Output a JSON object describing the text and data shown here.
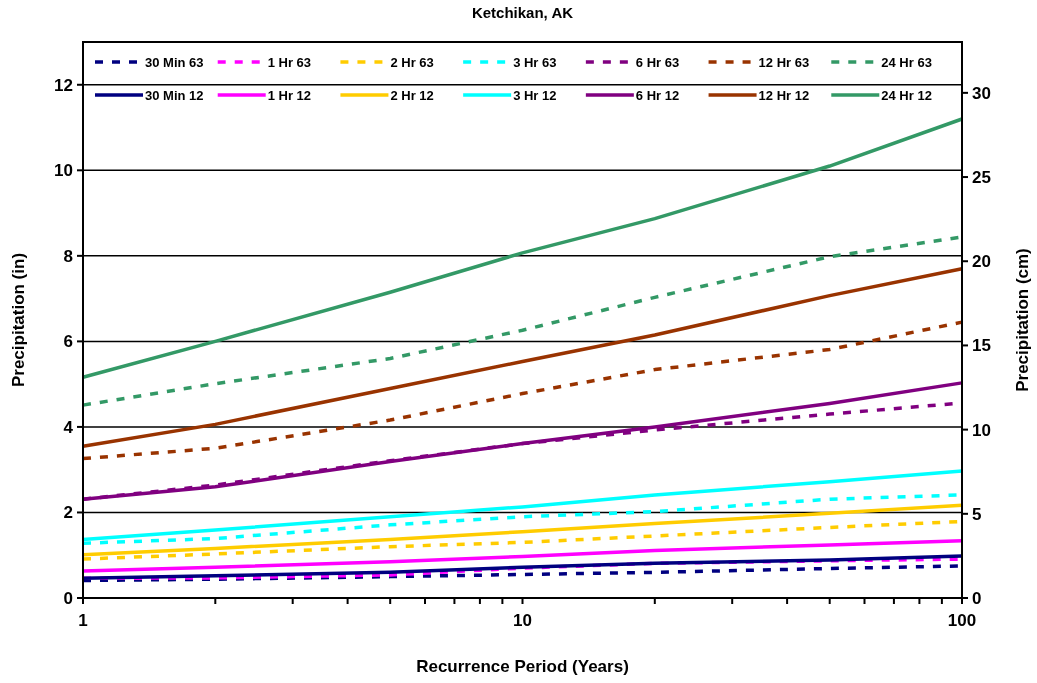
{
  "chart_data": {
    "type": "line",
    "title": "Ketchikan, AK",
    "xlabel": "Recurrence Period (Years)",
    "ylabel": "Precipitation (in)",
    "y2label": "Precipitation (cm)",
    "log": "x",
    "grid": "y",
    "legend": "top",
    "marker": "none",
    "xlim": [
      1,
      100
    ],
    "xticks": [
      1,
      {
        "value": 2,
        "label": null
      },
      {
        "value": 3,
        "label": null
      },
      {
        "value": 4,
        "label": null
      },
      {
        "value": 5,
        "label": null
      },
      {
        "value": 6,
        "label": null
      },
      {
        "value": 7,
        "label": null
      },
      {
        "value": 8,
        "label": null
      },
      {
        "value": 9,
        "label": null
      },
      10,
      {
        "value": 20,
        "label": null
      },
      {
        "value": 30,
        "label": null
      },
      {
        "value": 40,
        "label": null
      },
      {
        "value": 50,
        "label": null
      },
      {
        "value": 60,
        "label": null
      },
      {
        "value": 70,
        "label": null
      },
      {
        "value": 80,
        "label": null
      },
      {
        "value": 90,
        "label": null
      },
      100
    ],
    "ylim": [
      0,
      13
    ],
    "yticks": [
      0,
      2,
      4,
      6,
      8,
      10,
      12
    ],
    "y2lim": [
      0,
      33.02
    ],
    "y2ticks": [
      0,
      5,
      10,
      15,
      20,
      25,
      30
    ],
    "x": [
      1,
      2,
      5,
      10,
      20,
      50,
      100
    ],
    "series": [
      {
        "name": "30 Min 63",
        "color": "#000080",
        "line_style": "dashed",
        "values": [
          0.41,
          0.44,
          0.5,
          0.55,
          0.6,
          0.69,
          0.75
        ]
      },
      {
        "name": "1 Hr 63",
        "color": "#ff00ff",
        "line_style": "dashed",
        "values": [
          0.46,
          0.47,
          0.54,
          0.7,
          0.81,
          0.87,
          0.91
        ]
      },
      {
        "name": "2 Hr 63",
        "color": "#ffcc00",
        "line_style": "dashed",
        "values": [
          0.91,
          1.03,
          1.2,
          1.3,
          1.45,
          1.65,
          1.79
        ]
      },
      {
        "name": "3 Hr 63",
        "color": "#00ffff",
        "line_style": "dashed",
        "values": [
          1.28,
          1.39,
          1.71,
          1.9,
          2.02,
          2.31,
          2.41
        ]
      },
      {
        "name": "6 Hr 63",
        "color": "#800080",
        "line_style": "dashed",
        "values": [
          2.31,
          2.64,
          3.21,
          3.61,
          3.93,
          4.3,
          4.56
        ]
      },
      {
        "name": "12 Hr 63",
        "color": "#993300",
        "line_style": "dashed",
        "values": [
          3.26,
          3.5,
          4.16,
          4.78,
          5.34,
          5.81,
          6.45
        ]
      },
      {
        "name": "24 Hr 63",
        "color": "#339966",
        "line_style": "dashed",
        "values": [
          4.51,
          5.01,
          5.6,
          6.26,
          7.03,
          7.98,
          8.44
        ]
      },
      {
        "name": "30 Min 12",
        "color": "#000080",
        "line_style": "solid",
        "values": [
          0.46,
          0.52,
          0.6,
          0.72,
          0.81,
          0.89,
          0.98
        ]
      },
      {
        "name": "1 Hr 12",
        "color": "#ff00ff",
        "line_style": "solid",
        "values": [
          0.63,
          0.72,
          0.85,
          0.97,
          1.11,
          1.24,
          1.34
        ]
      },
      {
        "name": "2 Hr 12",
        "color": "#ffcc00",
        "line_style": "solid",
        "values": [
          1.01,
          1.16,
          1.37,
          1.55,
          1.74,
          1.98,
          2.17
        ]
      },
      {
        "name": "3 Hr 12",
        "color": "#00ffff",
        "line_style": "solid",
        "values": [
          1.37,
          1.59,
          1.9,
          2.13,
          2.41,
          2.72,
          2.97
        ]
      },
      {
        "name": "6 Hr 12",
        "color": "#800080",
        "line_style": "solid",
        "values": [
          2.31,
          2.6,
          3.19,
          3.61,
          4.0,
          4.55,
          5.03
        ]
      },
      {
        "name": "12 Hr 12",
        "color": "#993300",
        "line_style": "solid",
        "values": [
          3.55,
          4.06,
          4.9,
          5.53,
          6.15,
          7.07,
          7.7
        ]
      },
      {
        "name": "24 Hr 12",
        "color": "#339966",
        "line_style": "solid",
        "values": [
          5.16,
          6.0,
          7.15,
          8.07,
          8.87,
          10.1,
          11.2
        ]
      }
    ]
  }
}
